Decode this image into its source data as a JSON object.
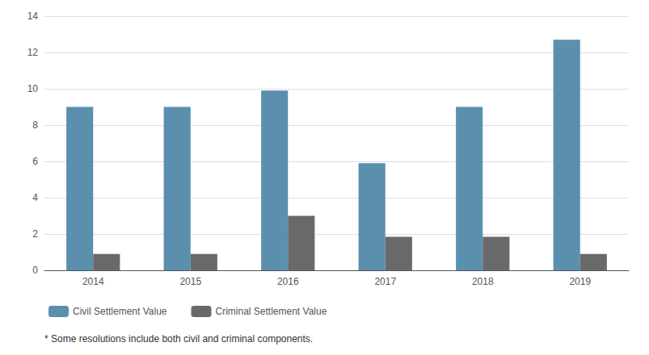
{
  "chart_data": {
    "type": "bar",
    "categories": [
      "2014",
      "2015",
      "2016",
      "2017",
      "2018",
      "2019"
    ],
    "series": [
      {
        "name": "Civil Settlement Value",
        "color": "#5b8fae",
        "values": [
          9,
          9,
          9.9,
          5.9,
          9,
          12.7
        ]
      },
      {
        "name": "Criminal Settlement Value",
        "color": "#696969",
        "values": [
          0.9,
          0.9,
          3.0,
          1.85,
          1.85,
          0.9
        ]
      }
    ],
    "ylim": [
      0,
      14
    ],
    "yticks": [
      0,
      2,
      4,
      6,
      8,
      10,
      12,
      14
    ],
    "grid": true,
    "legend": "bottom",
    "annotations": [
      "* Some resolutions include both civil and criminal components."
    ]
  }
}
